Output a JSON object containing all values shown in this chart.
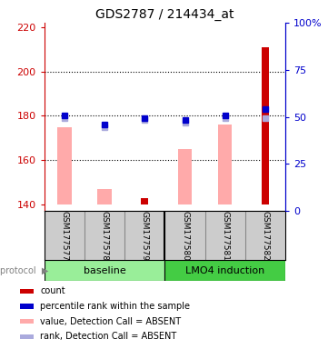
{
  "title": "GDS2787 / 214434_at",
  "samples": [
    "GSM177577",
    "GSM177578",
    "GSM177579",
    "GSM177580",
    "GSM177581",
    "GSM177582"
  ],
  "groups": [
    "baseline",
    "baseline",
    "baseline",
    "LMO4 induction",
    "LMO4 induction",
    "LMO4 induction"
  ],
  "ylim_left": [
    137,
    222
  ],
  "ylim_right": [
    0,
    100
  ],
  "yticks_left": [
    140,
    160,
    180,
    200,
    220
  ],
  "yticks_right": [
    0,
    25,
    50,
    75,
    100
  ],
  "ytick_labels_right": [
    "0",
    "25",
    "50",
    "75",
    "100%"
  ],
  "pink_bar_bottoms": [
    140,
    140,
    140,
    140,
    140,
    140
  ],
  "pink_bar_tops": [
    175,
    147,
    140,
    165,
    176,
    140
  ],
  "red_bar_bottoms": [
    140,
    140,
    140,
    140,
    140,
    140
  ],
  "red_bar_tops": [
    140,
    140,
    143,
    140,
    140,
    211
  ],
  "blue_square_y": [
    180,
    176,
    179,
    178,
    180,
    183
  ],
  "lavender_square_y": [
    179,
    175,
    178,
    177,
    179,
    179
  ],
  "pink_color": "#ffaaaa",
  "red_color": "#cc0000",
  "blue_color": "#0000cc",
  "lavender_color": "#aaaadd",
  "baseline_color": "#99ee99",
  "lmo4_color": "#44cc44",
  "left_axis_color": "#cc0000",
  "right_axis_color": "#0000cc",
  "sample_box_color": "#cccccc",
  "sample_box_edge": "#888888",
  "bar_width": 0.35,
  "red_bar_width": 0.18,
  "marker_size": 5
}
